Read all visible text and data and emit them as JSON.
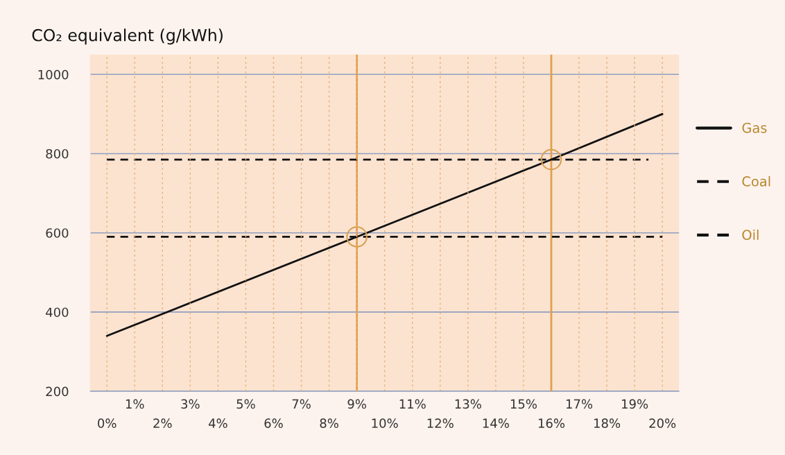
{
  "chart_data": {
    "type": "line",
    "ylabel": "CO₂ equivalent (g/kWh)",
    "x": [
      0,
      9,
      16,
      20
    ],
    "series": [
      {
        "name": "Gas",
        "color": "#111111",
        "values": [
          340,
          590,
          785,
          900
        ],
        "line_style": "solid"
      },
      {
        "name": "Coal",
        "color": "#111111",
        "x": [
          0,
          19.5
        ],
        "values": [
          785,
          785
        ],
        "line_style": "dashed"
      },
      {
        "name": "Oil",
        "color": "#111111",
        "x": [
          0,
          20
        ],
        "values": [
          590,
          590
        ],
        "line_style": "dashed"
      },
      {
        "type": "scatter",
        "color": "#d9a050",
        "x": [
          9,
          16
        ],
        "values": [
          590,
          785
        ],
        "marker": "circle"
      }
    ],
    "ref_lines": [
      {
        "axis": "x",
        "value": 9,
        "color": "#e0a050"
      },
      {
        "axis": "x",
        "value": 16,
        "color": "#e0a050"
      }
    ],
    "xlim": [
      -0.6,
      20.6
    ],
    "ylim": [
      200,
      1050
    ],
    "xticks": [
      {
        "value": 0,
        "label": "0%"
      },
      {
        "value": 2,
        "label": "2%"
      },
      {
        "value": 4,
        "label": "4%"
      },
      {
        "value": 6,
        "label": "6%"
      },
      {
        "value": 8,
        "label": "8%"
      },
      {
        "value": 10,
        "label": "10%"
      },
      {
        "value": 12,
        "label": "12%"
      },
      {
        "value": 14,
        "label": "14%"
      },
      {
        "value": 16,
        "label": "16%"
      },
      {
        "value": 18,
        "label": "18%"
      },
      {
        "value": 20,
        "label": "20%"
      }
    ],
    "x2lim": [
      -0.6,
      20.6
    ],
    "x2ticks": [
      {
        "value": 1,
        "label": "1%"
      },
      {
        "value": 3,
        "label": "3%"
      },
      {
        "value": 5,
        "label": "5%"
      },
      {
        "value": 7,
        "label": "7%"
      },
      {
        "value": 9,
        "label": "9%"
      },
      {
        "value": 11,
        "label": "11%"
      },
      {
        "value": 13,
        "label": "13%"
      },
      {
        "value": 15,
        "label": "15%"
      },
      {
        "value": 17,
        "label": "17%"
      },
      {
        "value": 19,
        "label": "19%"
      }
    ],
    "yticks": [
      200,
      400,
      600,
      800,
      1000
    ],
    "grid": true,
    "legend": "right"
  }
}
